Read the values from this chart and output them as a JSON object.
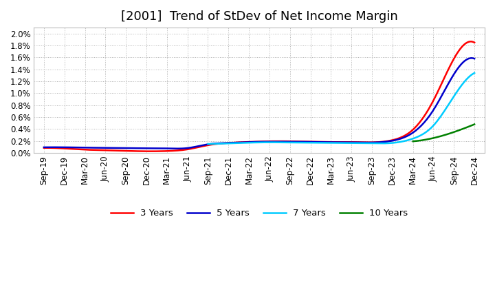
{
  "title": "[2001]  Trend of StDev of Net Income Margin",
  "ylim": [
    0.0,
    0.021
  ],
  "yticks": [
    0.0,
    0.002,
    0.004,
    0.006,
    0.008,
    0.01,
    0.012,
    0.014,
    0.016,
    0.018,
    0.02
  ],
  "ytick_labels": [
    "0.0%",
    "0.2%",
    "0.4%",
    "0.6%",
    "0.8%",
    "1.0%",
    "1.2%",
    "1.4%",
    "1.6%",
    "1.8%",
    "2.0%"
  ],
  "x_labels": [
    "Sep-19",
    "Dec-19",
    "Mar-20",
    "Jun-20",
    "Sep-20",
    "Dec-20",
    "Mar-21",
    "Jun-21",
    "Sep-21",
    "Dec-21",
    "Mar-22",
    "Jun-22",
    "Sep-22",
    "Dec-22",
    "Mar-23",
    "Jun-23",
    "Sep-23",
    "Dec-23",
    "Mar-24",
    "Jun-24",
    "Sep-24",
    "Dec-24"
  ],
  "line_3y_color": "#FF0000",
  "line_5y_color": "#0000CC",
  "line_7y_color": "#00CCFF",
  "line_10y_color": "#008000",
  "legend_labels": [
    "3 Years",
    "5 Years",
    "7 Years",
    "10 Years"
  ],
  "background_color": "#FFFFFF",
  "grid_color": "#AAAAAA",
  "title_fontsize": 13,
  "tick_fontsize": 8.5,
  "data_3y": [
    0.00085,
    0.00075,
    0.00055,
    0.00045,
    0.00035,
    0.00028,
    0.00032,
    0.0006,
    0.0013,
    0.00168,
    0.00185,
    0.00195,
    0.00195,
    0.00188,
    0.00183,
    0.00183,
    0.00178,
    0.00215,
    0.0039,
    0.0088,
    0.0158,
    0.0185
  ],
  "data_5y": [
    0.00095,
    0.00095,
    0.0009,
    0.00085,
    0.00082,
    0.00078,
    0.00076,
    0.00082,
    0.00145,
    0.00168,
    0.00182,
    0.00188,
    0.00188,
    0.00185,
    0.0018,
    0.00178,
    0.00175,
    0.00205,
    0.0034,
    0.0072,
    0.0132,
    0.0158
  ],
  "data_7y": [
    null,
    null,
    null,
    null,
    null,
    null,
    null,
    null,
    0.0015,
    0.0016,
    0.00172,
    0.00178,
    0.00175,
    0.00172,
    0.00168,
    0.00165,
    0.00162,
    0.00168,
    0.0024,
    0.0046,
    0.0095,
    0.0134
  ],
  "data_10y": [
    null,
    null,
    null,
    null,
    null,
    null,
    null,
    null,
    null,
    null,
    null,
    null,
    null,
    null,
    null,
    null,
    null,
    null,
    0.00195,
    0.0025,
    0.0035,
    0.0048
  ]
}
